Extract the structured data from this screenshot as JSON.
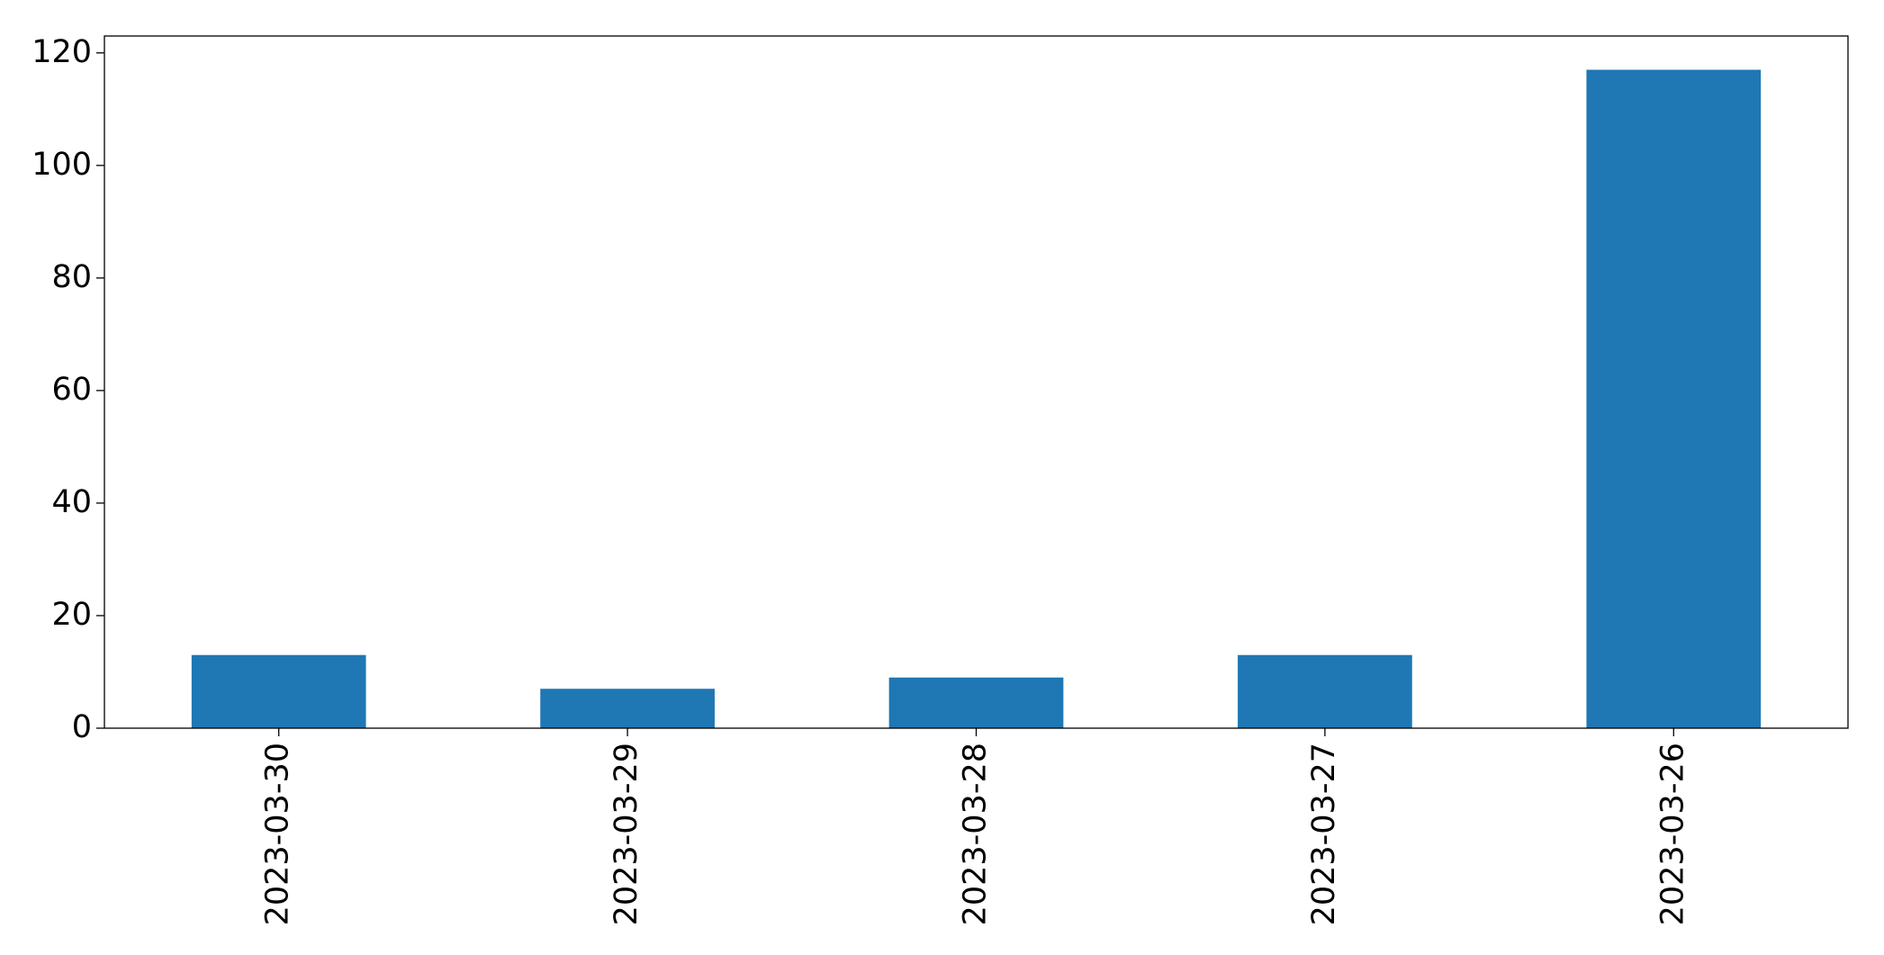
{
  "chart_data": {
    "type": "bar",
    "categories": [
      "2023-03-30",
      "2023-03-29",
      "2023-03-28",
      "2023-03-27",
      "2023-03-26"
    ],
    "values": [
      13,
      7,
      9,
      13,
      117
    ],
    "color": "#1f77b4",
    "ylim": [
      0,
      123
    ],
    "yticks": [
      0,
      20,
      40,
      60,
      80,
      100,
      120
    ],
    "grid": false
  }
}
